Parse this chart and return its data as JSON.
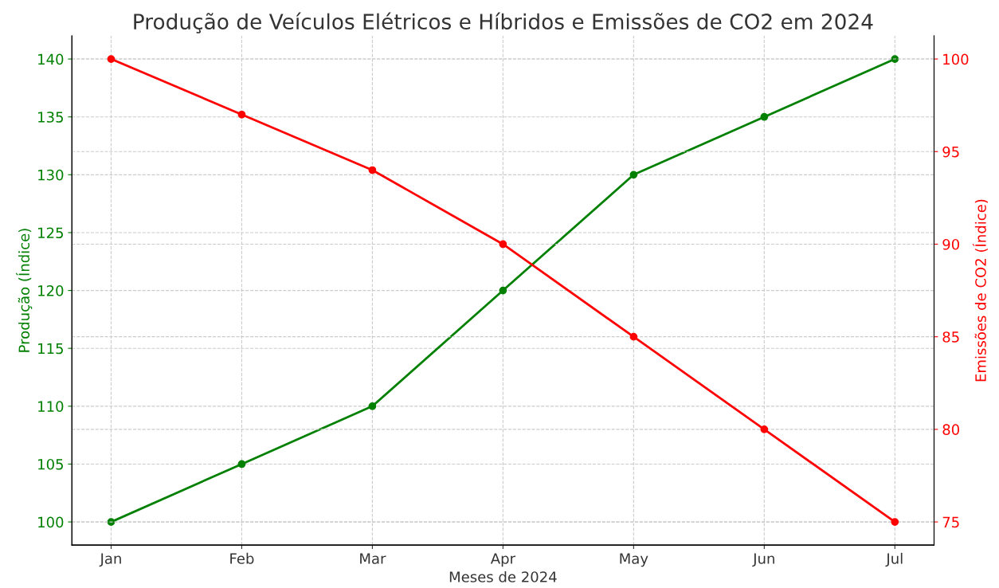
{
  "chart_data": {
    "type": "line",
    "title": "Produção de Veículos Elétricos e Híbridos e Emissões de CO2 em 2024",
    "xlabel": "Meses de 2024",
    "ylabel": "Produção (Índice)",
    "y2label": "Emissões de CO2 (Índice)",
    "categories": [
      "Jan",
      "Feb",
      "Mar",
      "Apr",
      "May",
      "Jun",
      "Jul"
    ],
    "series": [
      {
        "color": "#008000",
        "values": [
          100,
          105,
          110,
          120,
          130,
          135,
          140
        ]
      },
      {
        "color": "#ff0000",
        "axis": "y2",
        "values": [
          100,
          97,
          94,
          90,
          85,
          80,
          75
        ]
      }
    ],
    "ylim": [
      98,
      142
    ],
    "yticks": [
      100,
      105,
      110,
      115,
      120,
      125,
      130,
      135,
      140
    ],
    "y2lim": [
      73.75,
      101.25
    ],
    "y2ticks": [
      75,
      80,
      85,
      90,
      95,
      100
    ],
    "grid": true,
    "marker": "circle",
    "line_style": "solid"
  }
}
